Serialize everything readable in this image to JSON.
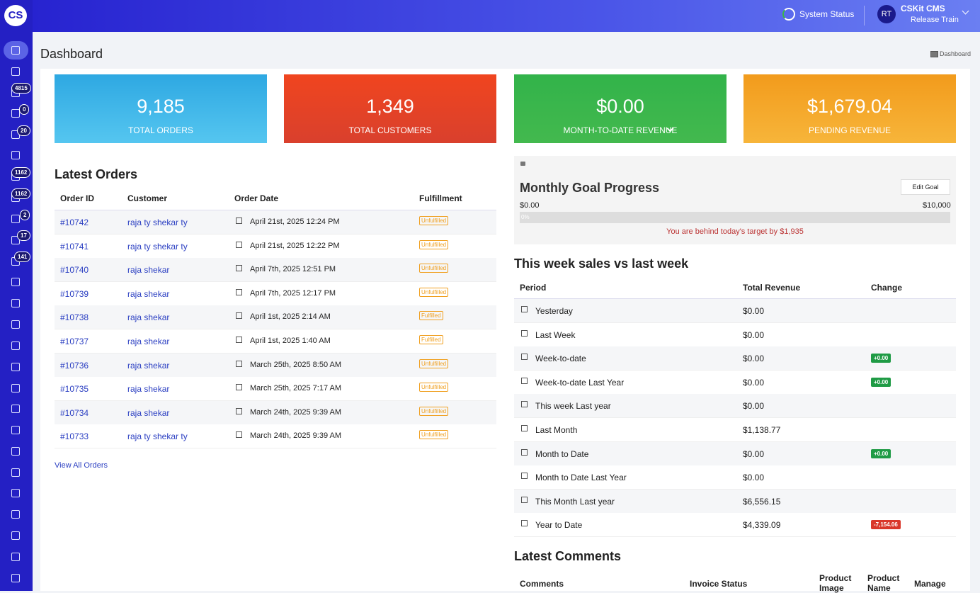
{
  "header": {
    "logo": "CS",
    "system_status": "System Status",
    "user_initials": "RT",
    "user_title": "CSKit CMS",
    "user_subtitle": "Release Train"
  },
  "sidebar": {
    "badges": [
      "4815",
      "0",
      "20",
      "1162",
      "1162",
      "2",
      "17",
      "141"
    ]
  },
  "page": {
    "title": "Dashboard",
    "breadcrumb": "Dashboard"
  },
  "stats": [
    {
      "value": "9,185",
      "label": "TOTAL ORDERS"
    },
    {
      "value": "1,349",
      "label": "TOTAL CUSTOMERS"
    },
    {
      "value": "$0.00",
      "label": "MONTH-TO-DATE REVENUE"
    },
    {
      "value": "$1,679.04",
      "label": "PENDING REVENUE"
    }
  ],
  "latest_orders": {
    "title": "Latest Orders",
    "columns": [
      "Order ID",
      "Customer",
      "Order Date",
      "Fulfillment"
    ],
    "rows": [
      [
        "#10742",
        "raja ty shekar ty",
        "April 21st, 2025 12:24 PM",
        "Unfulfilled"
      ],
      [
        "#10741",
        "raja ty shekar ty",
        "April 21st, 2025 12:22 PM",
        "Unfulfilled"
      ],
      [
        "#10740",
        "raja shekar",
        "April 7th, 2025 12:51 PM",
        "Unfulfilled"
      ],
      [
        "#10739",
        "raja shekar",
        "April 7th, 2025 12:17 PM",
        "Unfulfilled"
      ],
      [
        "#10738",
        "raja shekar",
        "April 1st, 2025 2:14 AM",
        "Fulfilled"
      ],
      [
        "#10737",
        "raja shekar",
        "April 1st, 2025 1:40 AM",
        "Fulfilled"
      ],
      [
        "#10736",
        "raja shekar",
        "March 25th, 2025 8:50 AM",
        "Unfulfilled"
      ],
      [
        "#10735",
        "raja shekar",
        "March 25th, 2025 7:17 AM",
        "Unfulfilled"
      ],
      [
        "#10734",
        "raja shekar",
        "March 24th, 2025 9:39 AM",
        "Unfulfilled"
      ],
      [
        "#10733",
        "raja ty shekar ty",
        "March 24th, 2025 9:39 AM",
        "Unfulfilled"
      ]
    ],
    "view_all": "View All Orders"
  },
  "goal": {
    "title": "Monthly Goal Progress",
    "button": "Edit Goal",
    "min": "$0.00",
    "max": "$10,000",
    "progress": "0%",
    "message": "You are behind today's target by $1,935"
  },
  "weekly": {
    "title": "This week sales vs last week",
    "columns": [
      "Period",
      "Total Revenue",
      "Change"
    ],
    "rows": [
      {
        "period": "Yesterday",
        "revenue": "$0.00"
      },
      {
        "period": "Last Week",
        "revenue": "$0.00"
      },
      {
        "period": "Week-to-date",
        "revenue": "$0.00",
        "change": "+0.00"
      },
      {
        "period": "Week-to-date Last Year",
        "revenue": "$0.00",
        "change": "+0.00"
      },
      {
        "period": "This week Last year",
        "revenue": "$0.00"
      },
      {
        "period": "Last Month",
        "revenue": "$1,138.77"
      },
      {
        "period": "Month to Date",
        "revenue": "$0.00",
        "change": "+0.00"
      },
      {
        "period": "Month to Date Last Year",
        "revenue": "$0.00"
      },
      {
        "period": "This Month Last year",
        "revenue": "$6,556.15"
      },
      {
        "period": "Year to Date",
        "revenue": "$4,339.09",
        "change": "-7,154.06"
      }
    ]
  },
  "comments": {
    "title": "Latest Comments",
    "columns": [
      "Comments",
      "Invoice Status",
      "Product Image",
      "Product Name",
      "Manage"
    ]
  }
}
